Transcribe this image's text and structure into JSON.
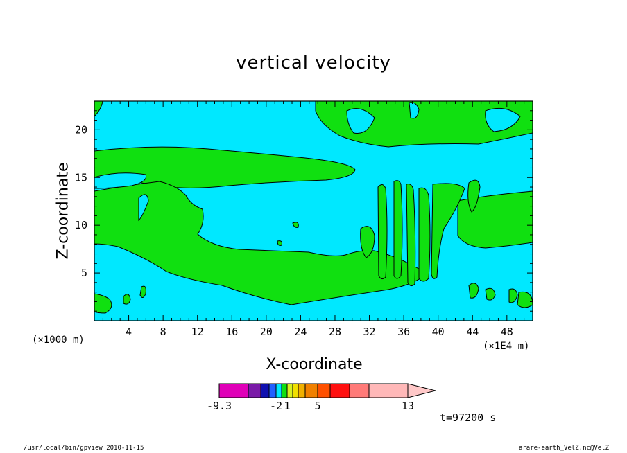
{
  "chart_data": {
    "type": "heatmap",
    "title": "vertical velocity",
    "xlabel": "X-coordinate",
    "ylabel": "Z-coordinate",
    "x_unit_left": "(×1000 m)",
    "x_unit_right": "(×1E4 m)",
    "xlim": [
      0,
      51
    ],
    "ylim": [
      0,
      23
    ],
    "x_ticks": [
      4,
      8,
      12,
      16,
      20,
      24,
      28,
      32,
      36,
      40,
      44,
      48
    ],
    "y_ticks": [
      5,
      10,
      15,
      20
    ],
    "colorbar": {
      "tick_labels": [
        {
          "label": "-9.3",
          "boundary_index": 0
        },
        {
          "label": "-2",
          "boundary_index": 4
        },
        {
          "label": "1",
          "boundary_index": 6
        },
        {
          "label": "5",
          "boundary_index": 10
        },
        {
          "label": "13",
          "boundary_index": 14
        }
      ],
      "colors": [
        "#e000b8",
        "#7a1aa8",
        "#1010b0",
        "#2060ff",
        "#00e8ff",
        "#10e010",
        "#d8f020",
        "#f0e000",
        "#f0b000",
        "#f08000",
        "#ff5000",
        "#ff1010",
        "#ff7a78",
        "#ffb8b8",
        "#ffc8c8"
      ]
    },
    "shown_levels": {
      "background": "#00e8ff",
      "positive": "#10e010"
    }
  },
  "time_label": "t=97200 s",
  "footer": {
    "left": "/usr/local/bin/gpview  2010-11-15",
    "right": "arare-earth_VelZ.nc@VelZ"
  }
}
